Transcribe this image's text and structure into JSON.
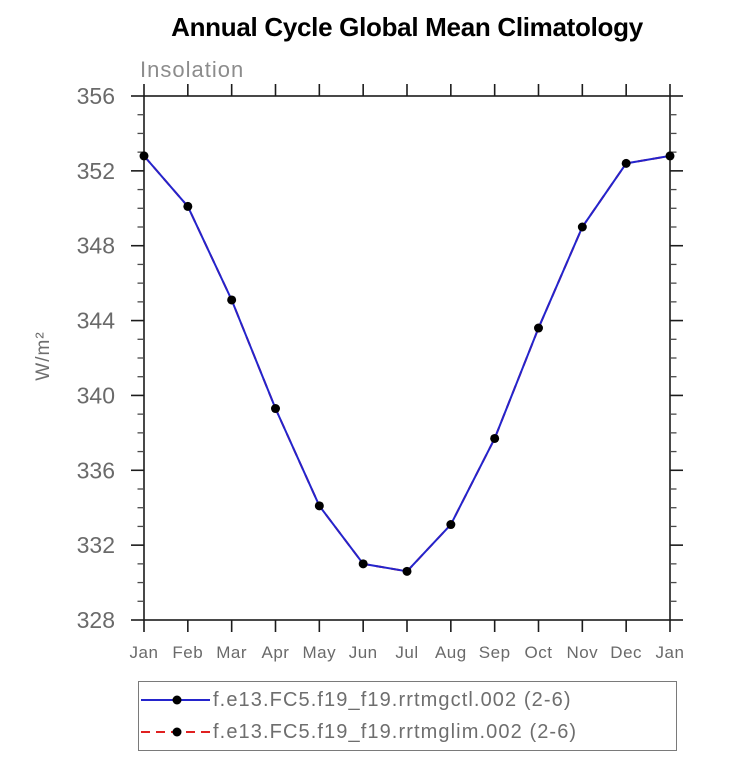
{
  "chart_data": {
    "type": "line",
    "title": "Annual Cycle Global Mean Climatology",
    "subtitle": "Insolation",
    "ylabel": "W/m²",
    "xlabel": "",
    "categories": [
      "Jan",
      "Feb",
      "Mar",
      "Apr",
      "May",
      "Jun",
      "Jul",
      "Aug",
      "Sep",
      "Oct",
      "Nov",
      "Dec",
      "Jan"
    ],
    "ylim": [
      328,
      356
    ],
    "yticks": [
      356,
      352,
      348,
      344,
      340,
      336,
      332,
      328
    ],
    "ytick_interval": 4,
    "y_minor_interval": 1,
    "grid": false,
    "legend_position": "bottom",
    "axis_color": "#1c1c1c",
    "text_color": "#6a6a6a",
    "marker_color": "#000000",
    "series": [
      {
        "name": "f.e13.FC5.f19_f19.rrtmgctl.002 (2-6)",
        "color": "#2424cc",
        "line_style": "solid",
        "dash": "none",
        "marker": "filled-circle-black",
        "values": [
          352.8,
          350.1,
          345.1,
          339.3,
          334.1,
          331.0,
          330.6,
          333.1,
          337.7,
          343.6,
          349.0,
          352.4,
          352.8
        ]
      },
      {
        "name": "f.e13.FC5.f19_f19.rrtmglim.002 (2-6)",
        "color": "#e02020",
        "line_style": "dashed",
        "dash": "9 6",
        "marker": "filled-circle-black",
        "overlap_note": "coincides exactly with first series; line visible only in legend",
        "values": [
          352.8,
          350.1,
          345.1,
          339.3,
          334.1,
          331.0,
          330.6,
          333.1,
          337.7,
          343.6,
          349.0,
          352.4,
          352.8
        ]
      }
    ]
  }
}
